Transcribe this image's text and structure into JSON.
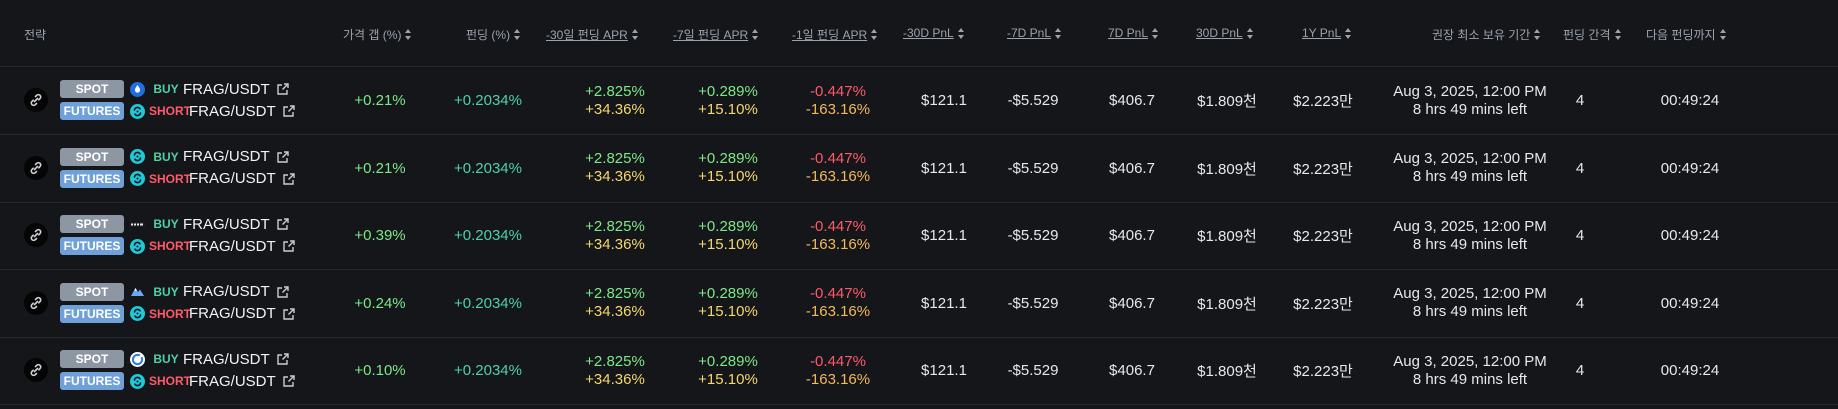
{
  "header": {
    "strategy": "전략",
    "price_gap": "가격 갭 (%)",
    "funding": "펀딩 (%)",
    "apr30": "-30일 펀딩 APR",
    "apr7": "-7일 펀딩 APR",
    "apr1": "-1일 펀딩 APR",
    "pnl30neg": "-30D PnL",
    "pnl7neg": "-7D PnL",
    "pnl7": "7D PnL",
    "pnl30": "30D PnL",
    "pnl1y": "1Y PnL",
    "hold": "권장 최소 보유 기간",
    "interval": "펀딩 간격",
    "next": "다음 펀딩까지"
  },
  "colors": {
    "background": "#14161a",
    "buy": "#4fd1a5",
    "short": "#ff5a6a",
    "positive": "#7ee787",
    "apr_long": "#f5d76e",
    "negative": "#ff5a6a"
  },
  "rows": [
    {
      "spot_label": "SPOT",
      "futures_label": "FUTURES",
      "spot_exchange_icon": "drop-exchange-icon",
      "futures_exchange_icon": "swirl-exchange-icon",
      "buy": "BUY",
      "short": "SHORT",
      "spot_pair": "FRAG/USDT",
      "futures_pair": "FRAG/USDT",
      "price_gap": "+0.21%",
      "funding": "+0.2034%",
      "apr30_a": "+2.825%",
      "apr30_b": "+34.36%",
      "apr7_a": "+0.289%",
      "apr7_b": "+15.10%",
      "apr1_a": "-0.447%",
      "apr1_b": "-163.16%",
      "pnl30neg": "$121.1",
      "pnl7neg": "-$5.529",
      "pnl7": "$406.7",
      "pnl30": "$1.809천",
      "pnl1y": "$2.223만",
      "hold_date": "Aug 3, 2025, 12:00 PM",
      "hold_left": "8 hrs 49 mins left",
      "interval": "4",
      "next": "00:49:24"
    },
    {
      "spot_label": "SPOT",
      "futures_label": "FUTURES",
      "spot_exchange_icon": "swirl-exchange-icon",
      "futures_exchange_icon": "swirl-exchange-icon",
      "buy": "BUY",
      "short": "SHORT",
      "spot_pair": "FRAG/USDT",
      "futures_pair": "FRAG/USDT",
      "price_gap": "+0.21%",
      "funding": "+0.2034%",
      "apr30_a": "+2.825%",
      "apr30_b": "+34.36%",
      "apr7_a": "+0.289%",
      "apr7_b": "+15.10%",
      "apr1_a": "-0.447%",
      "apr1_b": "-163.16%",
      "pnl30neg": "$121.1",
      "pnl7neg": "-$5.529",
      "pnl7": "$406.7",
      "pnl30": "$1.809천",
      "pnl1y": "$2.223만",
      "hold_date": "Aug 3, 2025, 12:00 PM",
      "hold_left": "8 hrs 49 mins left",
      "interval": "4",
      "next": "00:49:24"
    },
    {
      "spot_label": "SPOT",
      "futures_label": "FUTURES",
      "spot_exchange_icon": "wordmark-exchange-icon",
      "futures_exchange_icon": "swirl-exchange-icon",
      "buy": "BUY",
      "short": "SHORT",
      "spot_pair": "FRAG/USDT",
      "futures_pair": "FRAG/USDT",
      "price_gap": "+0.39%",
      "funding": "+0.2034%",
      "apr30_a": "+2.825%",
      "apr30_b": "+34.36%",
      "apr7_a": "+0.289%",
      "apr7_b": "+15.10%",
      "apr1_a": "-0.447%",
      "apr1_b": "-163.16%",
      "pnl30neg": "$121.1",
      "pnl7neg": "-$5.529",
      "pnl7": "$406.7",
      "pnl30": "$1.809천",
      "pnl1y": "$2.223만",
      "hold_date": "Aug 3, 2025, 12:00 PM",
      "hold_left": "8 hrs 49 mins left",
      "interval": "4",
      "next": "00:49:24"
    },
    {
      "spot_label": "SPOT",
      "futures_label": "FUTURES",
      "spot_exchange_icon": "mountain-exchange-icon",
      "futures_exchange_icon": "swirl-exchange-icon",
      "buy": "BUY",
      "short": "SHORT",
      "spot_pair": "FRAG/USDT",
      "futures_pair": "FRAG/USDT",
      "price_gap": "+0.24%",
      "funding": "+0.2034%",
      "apr30_a": "+2.825%",
      "apr30_b": "+34.36%",
      "apr7_a": "+0.289%",
      "apr7_b": "+15.10%",
      "apr1_a": "-0.447%",
      "apr1_b": "-163.16%",
      "pnl30neg": "$121.1",
      "pnl7neg": "-$5.529",
      "pnl7": "$406.7",
      "pnl30": "$1.809천",
      "pnl1y": "$2.223만",
      "hold_date": "Aug 3, 2025, 12:00 PM",
      "hold_left": "8 hrs 49 mins left",
      "interval": "4",
      "next": "00:49:24"
    },
    {
      "spot_label": "SPOT",
      "futures_label": "FUTURES",
      "spot_exchange_icon": "ring-exchange-icon",
      "futures_exchange_icon": "swirl-exchange-icon",
      "buy": "BUY",
      "short": "SHORT",
      "spot_pair": "FRAG/USDT",
      "futures_pair": "FRAG/USDT",
      "price_gap": "+0.10%",
      "funding": "+0.2034%",
      "apr30_a": "+2.825%",
      "apr30_b": "+34.36%",
      "apr7_a": "+0.289%",
      "apr7_b": "+15.10%",
      "apr1_a": "-0.447%",
      "apr1_b": "-163.16%",
      "pnl30neg": "$121.1",
      "pnl7neg": "-$5.529",
      "pnl7": "$406.7",
      "pnl30": "$1.809천",
      "pnl1y": "$2.223만",
      "hold_date": "Aug 3, 2025, 12:00 PM",
      "hold_left": "8 hrs 49 mins left",
      "interval": "4",
      "next": "00:49:24"
    }
  ]
}
